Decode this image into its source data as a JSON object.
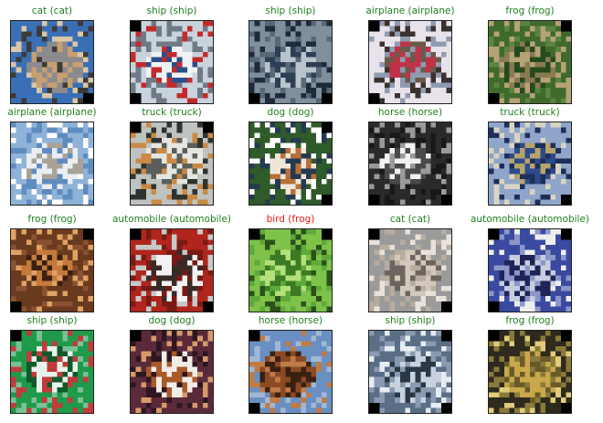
{
  "colors": {
    "correct": "#218021",
    "incorrect": "#e31a1c"
  },
  "grid": {
    "rows": 4,
    "cols": 5
  },
  "predictions": [
    {
      "label": "cat (cat)",
      "correct": true,
      "subject": "cat",
      "palette": [
        "#3a6fb5",
        "#8a8a8f",
        "#c8a070",
        "#3e3a36",
        "#d9c7a8"
      ]
    },
    {
      "label": "ship (ship)",
      "correct": true,
      "subject": "ship",
      "palette": [
        "#c9d3dd",
        "#f0f2f4",
        "#2b4f8a",
        "#c42a2a",
        "#6f7a86"
      ]
    },
    {
      "label": "ship (ship)",
      "correct": true,
      "subject": "ship",
      "palette": [
        "#7f8f9c",
        "#b9c3cc",
        "#2e3e55",
        "#586878",
        "#1e2a3a"
      ]
    },
    {
      "label": "airplane (airplane)",
      "correct": true,
      "subject": "airplane",
      "palette": [
        "#e8e2ea",
        "#c03248",
        "#6a5a4a",
        "#8f9bb0",
        "#3a3230"
      ]
    },
    {
      "label": "frog (frog)",
      "correct": true,
      "subject": "frog",
      "palette": [
        "#3f6a2c",
        "#8a7a52",
        "#254a1e",
        "#b6a277",
        "#5c8440"
      ]
    },
    {
      "label": "airplane (airplane)",
      "correct": true,
      "subject": "airplane",
      "palette": [
        "#8fb3d8",
        "#e9eef3",
        "#a9a296",
        "#5f8cc0",
        "#ffffff"
      ]
    },
    {
      "label": "truck (truck)",
      "correct": true,
      "subject": "truck",
      "palette": [
        "#bfc3c0",
        "#e6e6e0",
        "#5a5f5c",
        "#c98a46",
        "#2f3330"
      ]
    },
    {
      "label": "dog (dog)",
      "correct": true,
      "subject": "dog",
      "palette": [
        "#2f5a2a",
        "#f0e6d8",
        "#b8703a",
        "#243a50",
        "#ffffff"
      ]
    },
    {
      "label": "horse (horse)",
      "correct": true,
      "subject": "horse",
      "palette": [
        "#2a2a2a",
        "#f2f2f2",
        "#4a4a4a",
        "#9a9a9a",
        "#181818"
      ]
    },
    {
      "label": "truck (truck)",
      "correct": true,
      "subject": "truck",
      "palette": [
        "#8fa5c9",
        "#2d4a8a",
        "#b7a46a",
        "#1e2e5a",
        "#d9d5c2"
      ]
    },
    {
      "label": "frog (frog)",
      "correct": true,
      "subject": "frog",
      "palette": [
        "#6a3a1e",
        "#c47a3a",
        "#3b1f12",
        "#e0a264",
        "#8a5230"
      ]
    },
    {
      "label": "automobile (automobile)",
      "correct": true,
      "subject": "automobile",
      "palette": [
        "#b0261e",
        "#f2f2f2",
        "#3a2a26",
        "#7a1a14",
        "#c8c8c8"
      ]
    },
    {
      "label": "bird (frog)",
      "correct": false,
      "subject": "frog",
      "palette": [
        "#7ec24a",
        "#3c7a24",
        "#b2e07a",
        "#5fa83a",
        "#2a5218"
      ]
    },
    {
      "label": "cat (cat)",
      "correct": true,
      "subject": "cat",
      "palette": [
        "#9a9a9a",
        "#d2c8bc",
        "#6c645e",
        "#b8ac9e",
        "#e8e2da"
      ]
    },
    {
      "label": "automobile (automobile)",
      "correct": true,
      "subject": "automobile",
      "palette": [
        "#3a4aa0",
        "#c8cce0",
        "#1e2456",
        "#8c96c8",
        "#eeeeee"
      ]
    },
    {
      "label": "ship (ship)",
      "correct": true,
      "subject": "ship",
      "palette": [
        "#1f9a4a",
        "#e8f2ec",
        "#0e5a2a",
        "#c23a3a",
        "#7ac096"
      ]
    },
    {
      "label": "dog (dog)",
      "correct": true,
      "subject": "dog",
      "palette": [
        "#5a2a3a",
        "#f2ece6",
        "#a85a2a",
        "#2e1620",
        "#d69a6a"
      ]
    },
    {
      "label": "horse (horse)",
      "correct": true,
      "subject": "horse",
      "palette": [
        "#6a8fc2",
        "#8a4a24",
        "#3a2010",
        "#c07a46",
        "#a0b8d6"
      ]
    },
    {
      "label": "ship (ship)",
      "correct": true,
      "subject": "ship",
      "palette": [
        "#5a6e86",
        "#c8d2de",
        "#2a3848",
        "#8a9ab0",
        "#e6ecf2"
      ]
    },
    {
      "label": "frog (frog)",
      "correct": true,
      "subject": "frog",
      "palette": [
        "#2e2a1e",
        "#c8a84a",
        "#6a5a2a",
        "#8a7a3a",
        "#e0cc7a"
      ]
    }
  ]
}
